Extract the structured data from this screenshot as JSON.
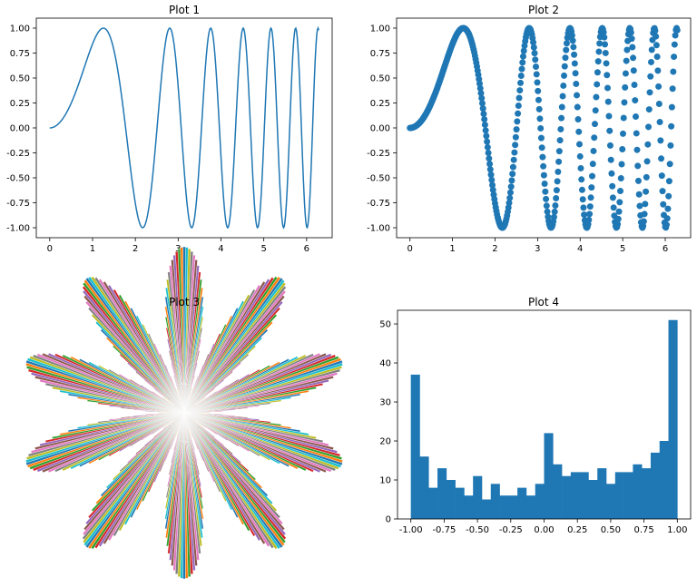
{
  "chart_data": [
    {
      "type": "line",
      "title": "Plot 1",
      "function": "sin(x^2)",
      "x_range": [
        0,
        6.283
      ],
      "num_points": 400,
      "xlim": [
        -0.314,
        6.597
      ],
      "ylim": [
        -1.1,
        1.1
      ],
      "xticks": [
        "0",
        "1",
        "2",
        "3",
        "4",
        "5",
        "6"
      ],
      "yticks": [
        "1.00",
        "0.75",
        "0.50",
        "0.25",
        "0.00",
        "-0.25",
        "-0.50",
        "-0.75",
        "-1.00"
      ],
      "color": "#1f77b4"
    },
    {
      "type": "scatter",
      "title": "Plot 2",
      "function": "sin(x^2)",
      "x_range": [
        0,
        6.283
      ],
      "num_points": 400,
      "xlim": [
        -0.314,
        6.597
      ],
      "ylim": [
        -1.1,
        1.1
      ],
      "xticks": [
        "0",
        "1",
        "2",
        "3",
        "4",
        "5",
        "6"
      ],
      "yticks": [
        "1.00",
        "0.75",
        "0.50",
        "0.25",
        "0.00",
        "-0.25",
        "-0.50",
        "-0.75",
        "-1.00"
      ],
      "color": "#1f77b4"
    },
    {
      "type": "polar-bar",
      "title": "Plot 3",
      "function": "r = |sin(5*theta)|",
      "num_bars": 400,
      "axis": "off",
      "colors": [
        "#1f77b4",
        "#ff7f0e",
        "#2ca02c",
        "#d62728",
        "#9467bd",
        "#8c564b",
        "#e377c2",
        "#7f7f7f",
        "#bcbd22",
        "#17becf"
      ]
    },
    {
      "type": "histogram",
      "title": "Plot 4",
      "bin_range": [
        -1.0,
        1.0
      ],
      "counts": [
        37,
        16,
        8,
        13,
        10,
        8,
        6,
        11,
        5,
        9,
        6,
        6,
        8,
        6,
        9,
        22,
        14,
        11,
        12,
        12,
        10,
        13,
        9,
        12,
        12,
        14,
        13,
        17,
        20,
        51
      ],
      "ylim": [
        0,
        53.5
      ],
      "xticks": [
        "-1.00",
        "-0.75",
        "-0.50",
        "-0.25",
        "0.00",
        "0.25",
        "0.50",
        "0.75",
        "1.00"
      ],
      "yticks": [
        "0",
        "10",
        "20",
        "30",
        "40",
        "50"
      ],
      "color": "#1f77b4"
    }
  ]
}
